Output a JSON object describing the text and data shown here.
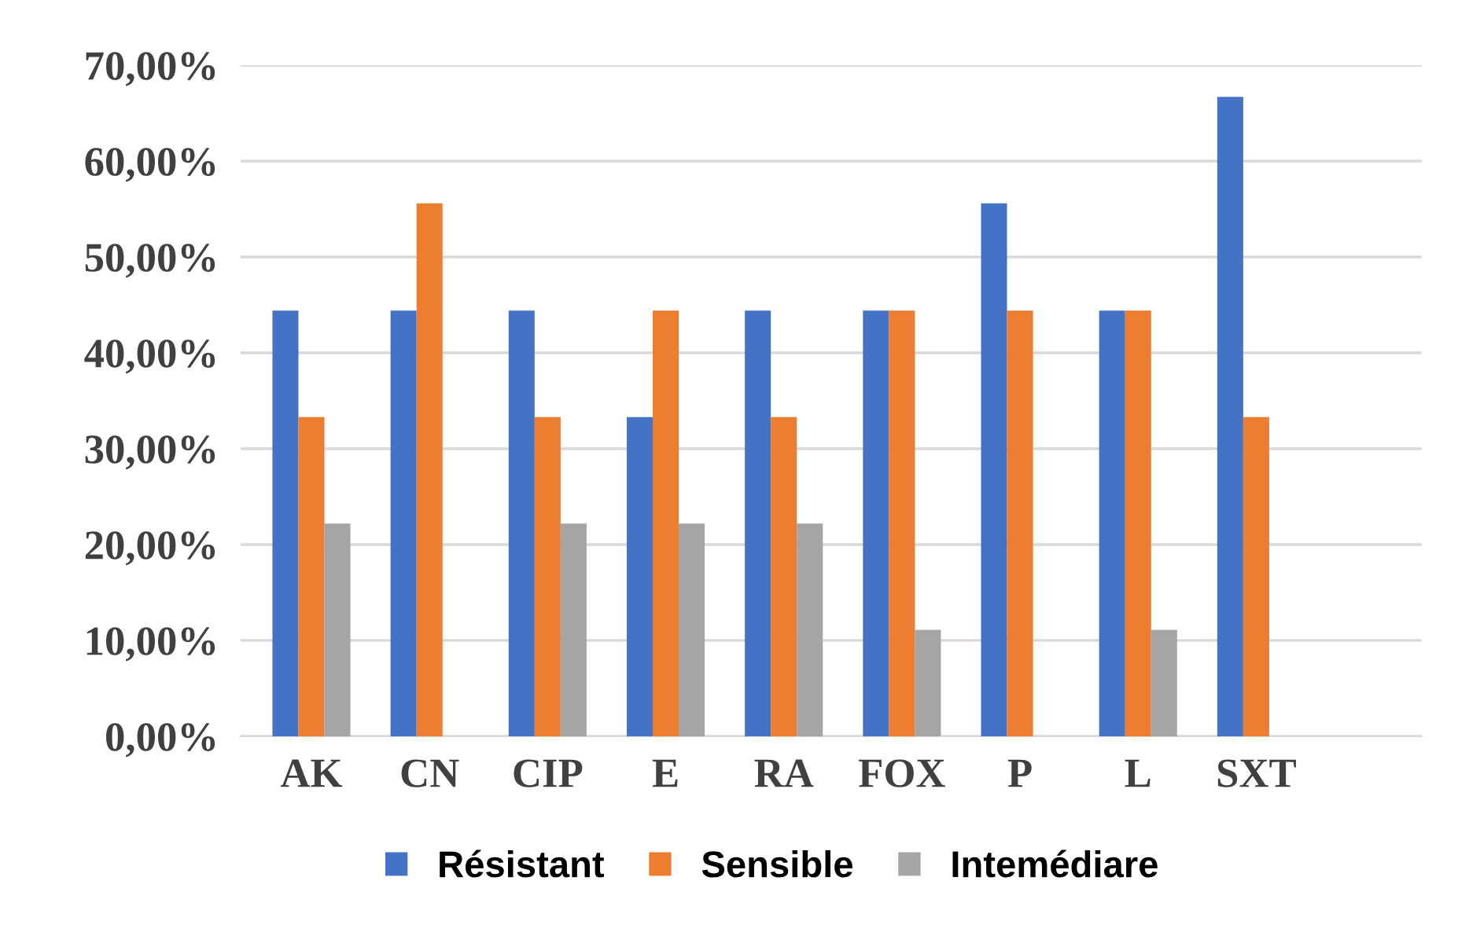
{
  "chart_data": {
    "type": "bar",
    "categories": [
      "AK",
      "CN",
      "CIP",
      "E",
      "RA",
      "FOX",
      "P",
      "L",
      "SXT"
    ],
    "series": [
      {
        "name": "Résistant",
        "color": "#4472c4",
        "values": [
          44.4,
          44.4,
          44.4,
          33.3,
          44.4,
          44.4,
          55.6,
          44.4,
          66.7
        ]
      },
      {
        "name": "Sensible",
        "color": "#ed7d31",
        "values": [
          33.3,
          55.6,
          33.3,
          44.4,
          33.3,
          44.4,
          44.4,
          44.4,
          33.3
        ]
      },
      {
        "name": "Intemédiare",
        "color": "#a5a5a5",
        "values": [
          22.2,
          0,
          22.2,
          22.2,
          22.2,
          11.1,
          0,
          11.1,
          0
        ]
      }
    ],
    "ylim": [
      0,
      70
    ],
    "yticks": [
      {
        "value": 0,
        "label": "0,00%"
      },
      {
        "value": 10,
        "label": "10,00%"
      },
      {
        "value": 20,
        "label": "20,00%"
      },
      {
        "value": 30,
        "label": "30,00%"
      },
      {
        "value": 40,
        "label": "40,00%"
      },
      {
        "value": 50,
        "label": "50,00%"
      },
      {
        "value": 60,
        "label": "60,00%"
      },
      {
        "value": 70,
        "label": "70,00%"
      }
    ],
    "grid": "y",
    "legend": "bottom"
  }
}
